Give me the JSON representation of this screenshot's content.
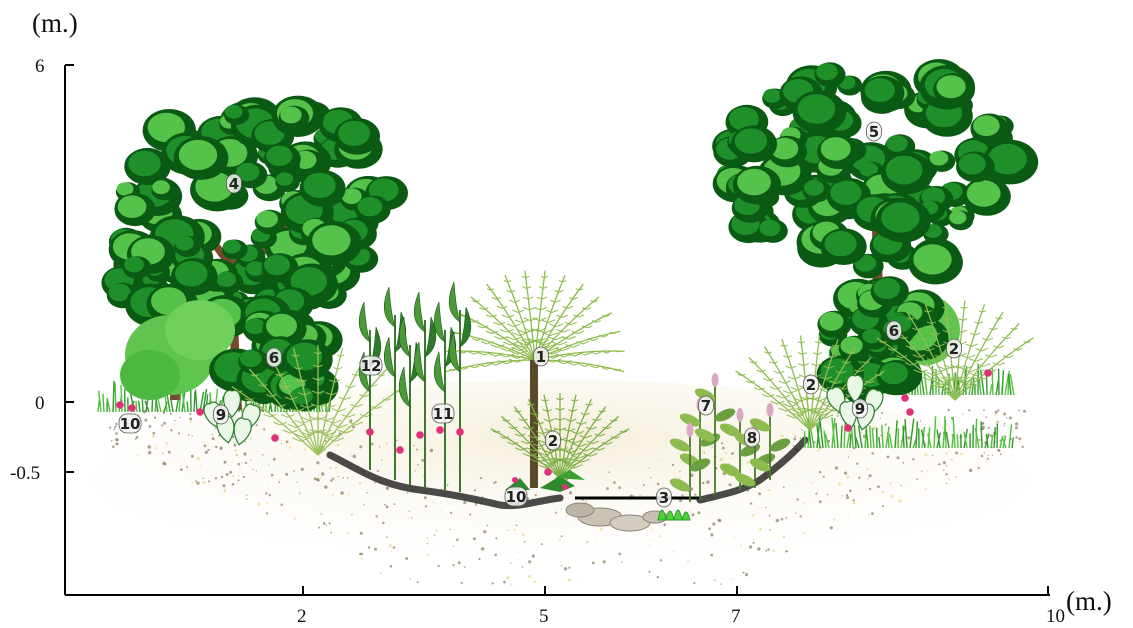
{
  "axes": {
    "y_unit": "(m.)",
    "x_unit": "(m.)",
    "y_ticks": [
      "6",
      "0",
      "-0.5"
    ],
    "x_ticks": [
      "2",
      "5",
      "7",
      "10"
    ]
  },
  "plants": [
    {
      "id": "fern-tree-1",
      "label": "1"
    },
    {
      "id": "fern-2-center",
      "label": "2"
    },
    {
      "id": "water-plant-3",
      "label": "3"
    },
    {
      "id": "tree-4",
      "label": "4"
    },
    {
      "id": "tree-5",
      "label": "5"
    },
    {
      "id": "shrub-6-left",
      "label": "6"
    },
    {
      "id": "shrub-6-right",
      "label": "6"
    },
    {
      "id": "herb-7",
      "label": "7"
    },
    {
      "id": "herb-8",
      "label": "8"
    },
    {
      "id": "caladium-9-left",
      "label": "9"
    },
    {
      "id": "caladium-9-right",
      "label": "9"
    },
    {
      "id": "ground-10-left",
      "label": "10"
    },
    {
      "id": "ground-10-center",
      "label": "10"
    },
    {
      "id": "ginger-11",
      "label": "11"
    },
    {
      "id": "ginger-12",
      "label": "12"
    },
    {
      "id": "fern-2-right-a",
      "label": "2"
    },
    {
      "id": "fern-2-right-b",
      "label": "2"
    }
  ],
  "colors": {
    "canopy_dark": "#0a5a14",
    "canopy_mid": "#1f8f2a",
    "canopy_light": "#55c24a",
    "trunk": "#7a4a30",
    "fern": "#8dbb4a",
    "grass": "#4ec23a",
    "soil_dark": "#2a2a2a",
    "soil_dots": "#8a7a5a",
    "flower": "#e0307a",
    "water_line": "#000000"
  }
}
